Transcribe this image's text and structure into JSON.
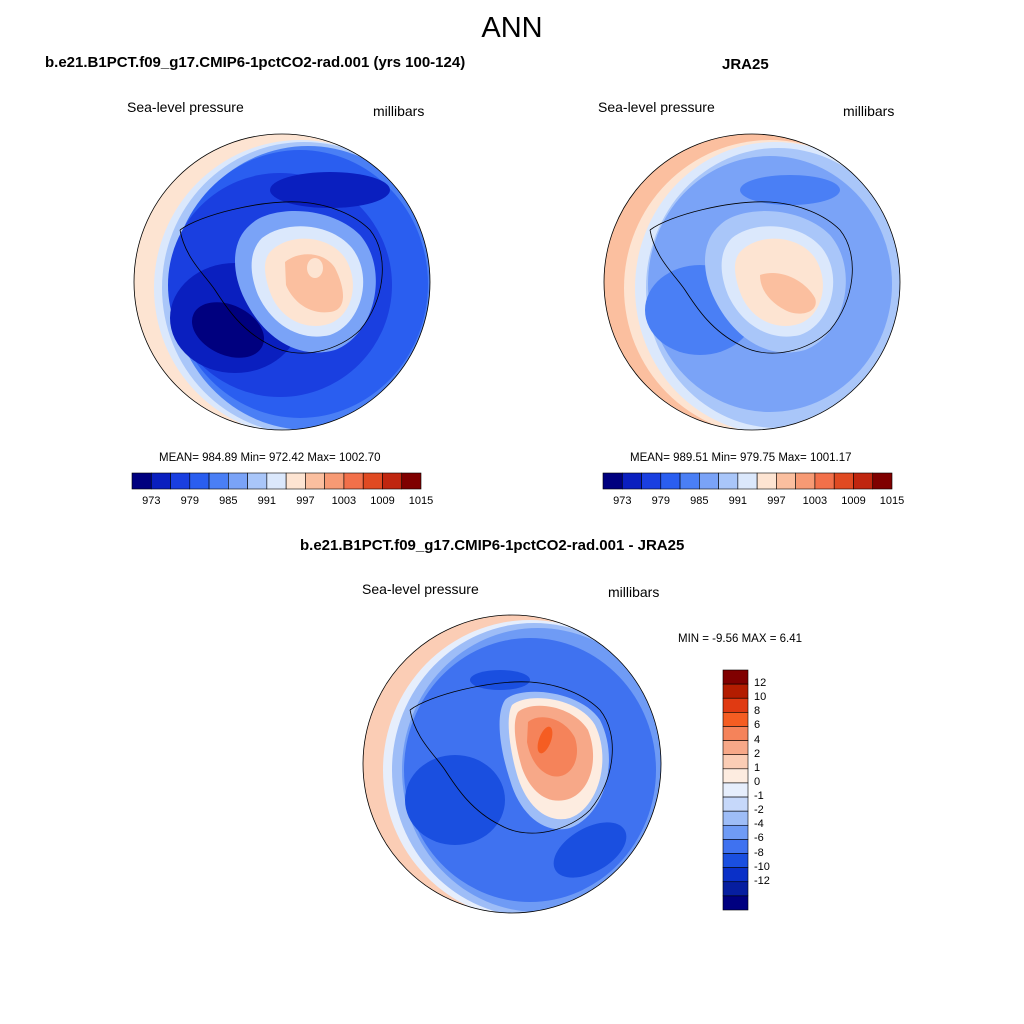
{
  "main_title": "ANN",
  "panels": [
    {
      "title": "b.e21.B1PCT.f09_g17.CMIP6-1pctCO2-rad.001 (yrs 100-124)",
      "left_label": "Sea-level pressure",
      "right_label": "millibars",
      "stats": "MEAN= 984.89  Min= 972.42  Max= 1002.70",
      "colorbar_ticks": [
        "973",
        "979",
        "985",
        "991",
        "997",
        "1003",
        "1009",
        "1015"
      ]
    },
    {
      "title": "JRA25",
      "left_label": "Sea-level pressure",
      "right_label": "millibars",
      "stats": "MEAN= 989.51  Min= 979.75  Max= 1001.17",
      "colorbar_ticks": [
        "973",
        "979",
        "985",
        "991",
        "997",
        "1003",
        "1009",
        "1015"
      ]
    },
    {
      "title": "b.e21.B1PCT.f09_g17.CMIP6-1pctCO2-rad.001 - JRA25",
      "left_label": "Sea-level pressure",
      "right_label": "millibars",
      "stats": "MIN =  -9.56 MAX =   6.41",
      "colorbar_ticks": [
        "12",
        "10",
        "8",
        "6",
        "4",
        "2",
        "1",
        "0",
        "-1",
        "-2",
        "-4",
        "-6",
        "-8",
        "-10",
        "-12"
      ]
    }
  ],
  "colors": {
    "abs_scale": [
      "#00007f",
      "#0a1fbf",
      "#1a3fe0",
      "#2a5ef0",
      "#4a7ff5",
      "#7aa3f7",
      "#a9c6f9",
      "#dbe8fc",
      "#fde4d2",
      "#fbbf9f",
      "#f79a74",
      "#f2704a",
      "#e04a22",
      "#c0260f",
      "#7f0000"
    ],
    "diff_scale": [
      "#800000",
      "#b31c00",
      "#e03a12",
      "#f55d22",
      "#f5835a",
      "#f7a888",
      "#fbcdb5",
      "#fdece0",
      "#e6eefc",
      "#c6d8fa",
      "#9ebdf7",
      "#6f9bf5",
      "#3f72f0",
      "#1a4fe0",
      "#0a30c8",
      "#061ea0",
      "#000080"
    ]
  }
}
